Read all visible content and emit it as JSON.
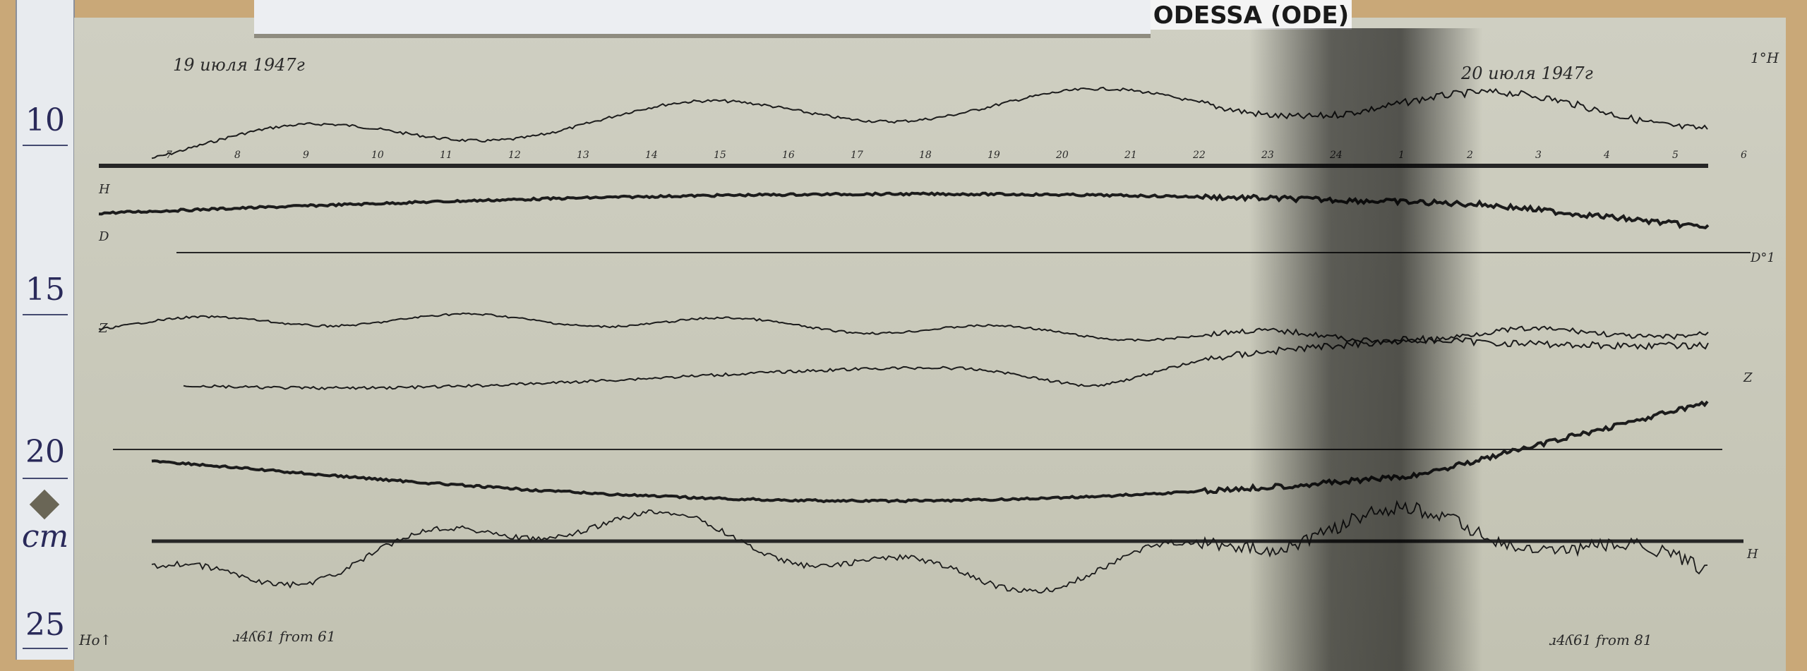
{
  "station_label": "ODESSA (ODE)",
  "ruler": {
    "marks": [
      "10",
      "15",
      "20",
      "cm",
      "25"
    ]
  },
  "magnetogram": {
    "date_start": "19 июля 1947г",
    "date_end": "20 июля 1947г",
    "bottom_note_left": "ɹ4ʎ61 from 61",
    "bottom_note_right": "ɹ4ʎ61 from 81",
    "hour_marks": [
      "7",
      "8",
      "9",
      "10",
      "11",
      "12",
      "13",
      "14",
      "15",
      "16",
      "17",
      "18",
      "19",
      "20",
      "21",
      "22",
      "23",
      "24",
      "1",
      "2",
      "3",
      "4",
      "5",
      "6"
    ],
    "channel_labels": {
      "top_right": "1°H",
      "d_right": "D°1",
      "z_right": "Z",
      "h_left": "H",
      "d_left": "D",
      "z_left": "Z",
      "ho": "Ho↑",
      "bottom_right": "H"
    },
    "colors": {
      "paper": "#cbcbbd",
      "ink": "#1e1e1e",
      "background": "#c9a878"
    }
  }
}
